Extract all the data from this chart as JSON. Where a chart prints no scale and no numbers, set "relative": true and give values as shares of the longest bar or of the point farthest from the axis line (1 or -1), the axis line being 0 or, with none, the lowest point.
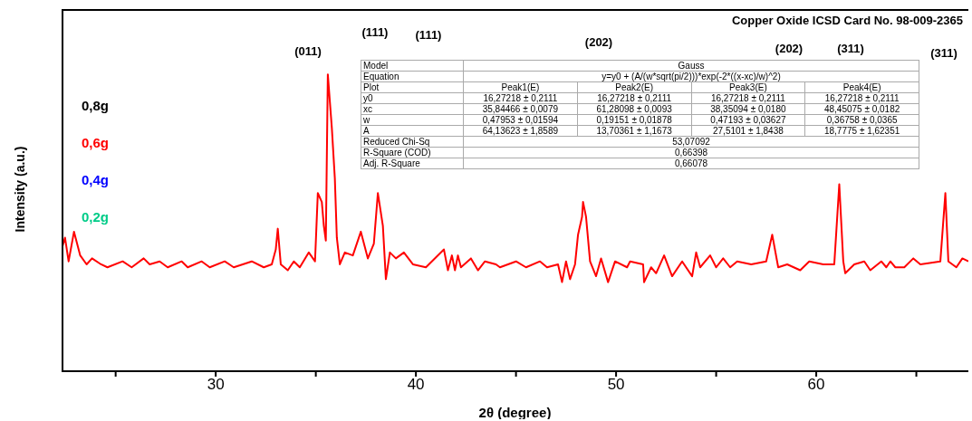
{
  "chart_data": {
    "type": "line",
    "title": "Copper Oxide ICSD Card No. 98-009-2365",
    "xlabel": "2θ (degree)",
    "ylabel": "Intensity (a.u.)",
    "relative": true,
    "legend": "left",
    "xlim": [
      22.3,
      67.6
    ],
    "xticks": [
      {
        "value": 25,
        "label": null
      },
      30,
      {
        "value": 35,
        "label": null
      },
      40,
      {
        "value": 45,
        "label": null
      },
      50,
      {
        "value": 55,
        "label": null
      },
      60,
      {
        "value": 65,
        "label": null
      }
    ],
    "x": [
      22.3,
      22.47,
      22.65,
      22.92,
      23.23,
      23.55,
      23.82,
      24.27,
      24.59,
      25.35,
      25.8,
      26.4,
      26.7,
      27.2,
      27.6,
      28.3,
      28.6,
      29.3,
      29.7,
      30.45,
      30.9,
      31.8,
      32.4,
      32.8,
      33.0,
      33.1,
      33.25,
      33.6,
      33.9,
      34.2,
      34.65,
      34.96,
      35.1,
      35.3,
      35.4,
      35.5,
      35.6,
      35.8,
      35.95,
      36.05,
      36.2,
      36.45,
      36.85,
      37.25,
      37.6,
      37.9,
      38.1,
      38.35,
      38.5,
      38.7,
      39.0,
      39.4,
      39.85,
      40.5,
      41.4,
      41.6,
      41.8,
      41.95,
      42.1,
      42.25,
      42.75,
      43.1,
      43.45,
      44.0,
      44.2,
      45.0,
      45.5,
      46.2,
      46.55,
      47.1,
      47.3,
      47.5,
      47.7,
      47.95,
      48.1,
      48.3,
      48.35,
      48.5,
      48.7,
      49.0,
      49.25,
      49.6,
      49.95,
      50.55,
      50.7,
      51.35,
      51.4,
      51.75,
      52.0,
      52.4,
      52.8,
      53.3,
      53.8,
      54.0,
      54.2,
      54.7,
      55.0,
      55.35,
      55.7,
      56.05,
      56.75,
      57.5,
      57.8,
      58.1,
      58.55,
      59.2,
      59.65,
      60.35,
      60.9,
      61.15,
      61.35,
      61.45,
      61.9,
      62.4,
      62.7,
      63.25,
      63.5,
      63.7,
      63.95,
      64.4,
      64.85,
      65.2,
      66.2,
      66.45,
      66.6,
      67.0,
      67.3,
      67.6
    ],
    "series": [
      {
        "name": "0,8g",
        "color": "#000000",
        "values": [
          null,
          null,
          null,
          null,
          null,
          null,
          null,
          null,
          null,
          null,
          null,
          null,
          null,
          null,
          null,
          null,
          null,
          null,
          null,
          null,
          null,
          null,
          null,
          null,
          null,
          null,
          null,
          null,
          null,
          null,
          null,
          null,
          null,
          null,
          null,
          null,
          null,
          null,
          null,
          null,
          null,
          null,
          null,
          null,
          null,
          null,
          null,
          null,
          null,
          null,
          null,
          null,
          null,
          null,
          null,
          null,
          null,
          null,
          null,
          null,
          null,
          null,
          null,
          null,
          null,
          null,
          null,
          null,
          null,
          null,
          null,
          null,
          null,
          null,
          null,
          null,
          null,
          null,
          null,
          null,
          null,
          null,
          null,
          null,
          null,
          null,
          null,
          null,
          null,
          null,
          null,
          null,
          null,
          null,
          null,
          null,
          null,
          null,
          null,
          null,
          null,
          null,
          null,
          null,
          null,
          null,
          null,
          null,
          null,
          null,
          null,
          null,
          null,
          null,
          null,
          null,
          null,
          null,
          null,
          null,
          null,
          null,
          null,
          null,
          null,
          null,
          null,
          null
        ]
      },
      {
        "name": "0,6g",
        "color": "#ff0000",
        "values": [
          0.41,
          0.45,
          0.37,
          0.47,
          0.39,
          0.36,
          0.38,
          0.36,
          0.35,
          0.37,
          0.35,
          0.38,
          0.36,
          0.37,
          0.35,
          0.37,
          0.35,
          0.37,
          0.35,
          0.37,
          0.35,
          0.37,
          0.35,
          0.36,
          0.41,
          0.48,
          0.36,
          0.34,
          0.37,
          0.35,
          0.4,
          0.37,
          0.6,
          0.57,
          0.49,
          0.44,
          1.0,
          0.82,
          0.65,
          0.45,
          0.36,
          0.4,
          0.39,
          0.47,
          0.38,
          0.43,
          0.6,
          0.49,
          0.31,
          0.4,
          0.38,
          0.4,
          0.36,
          0.35,
          0.41,
          0.34,
          0.39,
          0.34,
          0.39,
          0.35,
          0.38,
          0.34,
          0.37,
          0.36,
          0.35,
          0.37,
          0.35,
          0.37,
          0.35,
          0.36,
          0.3,
          0.37,
          0.31,
          0.36,
          0.46,
          0.52,
          0.57,
          0.52,
          0.37,
          0.32,
          0.38,
          0.3,
          0.37,
          0.35,
          0.37,
          0.36,
          0.3,
          0.35,
          0.33,
          0.39,
          0.32,
          0.37,
          0.32,
          0.4,
          0.35,
          0.39,
          0.35,
          0.38,
          0.35,
          0.37,
          0.36,
          0.37,
          0.46,
          0.35,
          0.36,
          0.34,
          0.37,
          0.36,
          0.36,
          0.63,
          0.37,
          0.33,
          0.36,
          0.37,
          0.34,
          0.37,
          0.35,
          0.37,
          0.35,
          0.35,
          0.38,
          0.36,
          0.37,
          0.6,
          0.37,
          0.35,
          0.38,
          0.37
        ]
      },
      {
        "name": "0,4g",
        "color": "#0000ff",
        "values": [
          null,
          null,
          null,
          null,
          null,
          null,
          null,
          null,
          null,
          null,
          null,
          null,
          null,
          null,
          null,
          null,
          null,
          null,
          null,
          null,
          null,
          null,
          null,
          null,
          null,
          null,
          null,
          null,
          null,
          null,
          null,
          null,
          null,
          null,
          null,
          null,
          null,
          null,
          null,
          null,
          null,
          null,
          null,
          null,
          null,
          null,
          null,
          null,
          null,
          null,
          null,
          null,
          null,
          null,
          null,
          null,
          null,
          null,
          null,
          null,
          null,
          null,
          null,
          null,
          null,
          null,
          null,
          null,
          null,
          null,
          null,
          null,
          null,
          null,
          null,
          null,
          null,
          null,
          null,
          null,
          null,
          null,
          null,
          null,
          null,
          null,
          null,
          null,
          null,
          null,
          null,
          null,
          null,
          null,
          null,
          null,
          null,
          null,
          null,
          null,
          null,
          null,
          null,
          null,
          null,
          null,
          null,
          null,
          null,
          null,
          null,
          null,
          null,
          null,
          null,
          null,
          null,
          null,
          null,
          null,
          null,
          null,
          null,
          null,
          null,
          null,
          null,
          null
        ]
      },
      {
        "name": "0,2g",
        "color": "#00cc88",
        "values": [
          null,
          null,
          null,
          null,
          null,
          null,
          null,
          null,
          null,
          null,
          null,
          null,
          null,
          null,
          null,
          null,
          null,
          null,
          null,
          null,
          null,
          null,
          null,
          null,
          null,
          null,
          null,
          null,
          null,
          null,
          null,
          null,
          null,
          null,
          null,
          null,
          null,
          null,
          null,
          null,
          null,
          null,
          null,
          null,
          null,
          null,
          null,
          null,
          null,
          null,
          null,
          null,
          null,
          null,
          null,
          null,
          null,
          null,
          null,
          null,
          null,
          null,
          null,
          null,
          null,
          null,
          null,
          null,
          null,
          null,
          null,
          null,
          null,
          null,
          null,
          null,
          null,
          null,
          null,
          null,
          null,
          null,
          null,
          null,
          null,
          null,
          null,
          null,
          null,
          null,
          null,
          null,
          null,
          null,
          null,
          null,
          null,
          null,
          null,
          null,
          null,
          null,
          null,
          null,
          null,
          null,
          null,
          null,
          null,
          null,
          null,
          null,
          null,
          null,
          null,
          null,
          null,
          null,
          null,
          null,
          null,
          null,
          null,
          null,
          null,
          null,
          null,
          null
        ]
      }
    ],
    "annotations": [
      "(011)",
      "(111)",
      "(111)",
      "(202)",
      "(202)",
      "(311)",
      "(311)",
      "Model",
      "Gauss",
      "Equation",
      "y=y0 + (A/(w*sqrt(pi/2)))*exp(-2*((x-xc)/w)^2)",
      "Plot",
      "Peak1(E)",
      "Peak2(E)",
      "Peak3(E)",
      "Peak4(E)",
      "y0",
      "16,27218 ± 0,2111",
      "16,27218 ± 0,2111",
      "16,27218 ± 0,2111",
      "16,27218 ± 0,2111",
      "xc",
      "35,84466 ± 0,0079",
      "61,28098 ± 0,0093",
      "38,35094 ± 0,0180",
      "48,45075 ± 0,0182",
      "w",
      "0,47953 ± 0,01594",
      "0,19151 ± 0,01878",
      "0,47193 ± 0,03627",
      "0,36758 ± 0,0365",
      "A",
      "64,13623 ± 1,8589",
      "13,70361 ± 1,1673",
      "27,5101 ± 1,8438",
      "18,7775 ± 1,62351",
      "Reduced Chi-Sq",
      "53,07092",
      "R-Square (COD)",
      "0,66398",
      "Adj. R-Square",
      "0,66078"
    ]
  }
}
